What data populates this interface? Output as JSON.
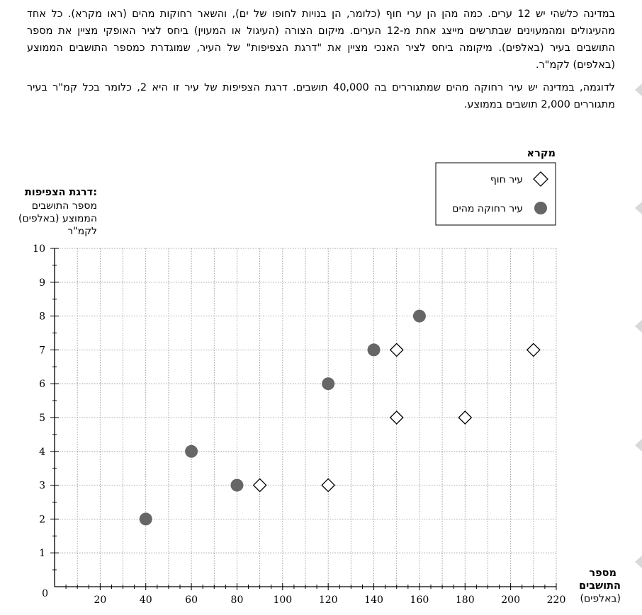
{
  "text": {
    "intro": "במדינה כלשהי יש 12 ערים. כמה מהן הן ערי חוף (כלומר, הן בנויות לחופו של ים), והשאר רחוקות מהים (ראו מקרא). כל אחד מהעיגולים ומהמעוינים שבתרשים מייצג אחת מ-12 הערים. מיקום הצורה (העיגול או המעוין) ביחס לציר האופקי מציין את מספר התושבים בעיר (באלפים). מיקומה ביחס לציר האנכי מציין את \"דרגת הצפיפות\" של העיר, שמוגדרת כמספר התושבים הממוצע (באלפים) לקמ\"ר.",
    "example": "לדוגמה, במדינה יש עיר רחוקה מהים שמתגוררים בה 40,000 תושבים. דרגת הצפיפות של עיר זו היא 2, כלומר בכל קמ\"ר בעיר מתגוררים 2,000 תושבים בממוצע."
  },
  "chart_data": {
    "type": "scatter",
    "title": "",
    "ylabel_bold": "דרגת הצפיפות:",
    "ylabel_lines": [
      "מספר התושבים",
      "הממוצע (באלפים)",
      "לקמ\"ר"
    ],
    "xlabel_bold_lines": [
      "מספר",
      "התושבים"
    ],
    "xlabel_sub": "(באלפים)",
    "xlim": [
      0,
      220
    ],
    "ylim": [
      0,
      10
    ],
    "x_ticks": [
      20,
      40,
      60,
      80,
      100,
      120,
      140,
      160,
      180,
      200,
      220
    ],
    "y_ticks": [
      1,
      2,
      3,
      4,
      5,
      6,
      7,
      8,
      9,
      10
    ],
    "origin_label": "0",
    "grid": true,
    "legend": {
      "title": "מקרא",
      "placement": "top-right"
    },
    "series": [
      {
        "name": "עיר חוף",
        "marker": "diamond",
        "points": [
          [
            90,
            3
          ],
          [
            120,
            3
          ],
          [
            150,
            5
          ],
          [
            150,
            7
          ],
          [
            180,
            5
          ],
          [
            210,
            7
          ]
        ]
      },
      {
        "name": "עיר רחוקה מהים",
        "marker": "circle",
        "points": [
          [
            40,
            2
          ],
          [
            60,
            4
          ],
          [
            80,
            3
          ],
          [
            120,
            6
          ],
          [
            140,
            7
          ],
          [
            160,
            8
          ]
        ]
      }
    ],
    "colors": {
      "circle_fill": "#666666",
      "diamond_fill": "#ffffff",
      "stroke": "#000000"
    }
  }
}
